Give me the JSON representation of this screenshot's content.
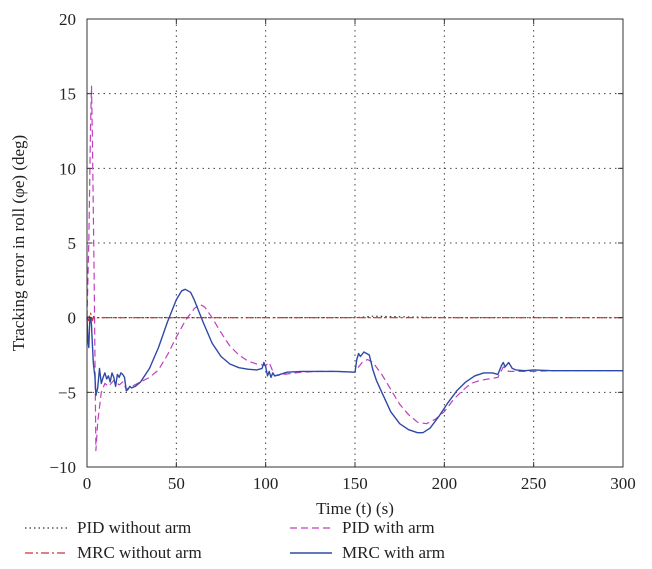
{
  "chart_data": {
    "type": "line",
    "xlabel": "Time (t) (s)",
    "ylabel": "Tracking error in roll (φe) (deg)",
    "xlim": [
      0,
      300
    ],
    "ylim": [
      -10,
      20
    ],
    "xticks": [
      0,
      50,
      100,
      150,
      200,
      250,
      300
    ],
    "yticks": [
      -10,
      -5,
      0,
      5,
      10,
      15,
      20
    ],
    "grid": true,
    "legend_position": "bottom",
    "series": [
      {
        "name": "PID without arm",
        "color": "#333333",
        "style": "dotted",
        "x": [
          0,
          1,
          2,
          3,
          5,
          50,
          100,
          150,
          160,
          200,
          250,
          300
        ],
        "y": [
          0,
          0.2,
          -0.3,
          0.1,
          0,
          0,
          0,
          0,
          0.1,
          0,
          0,
          0
        ]
      },
      {
        "name": "PID with arm",
        "color": "#c040c0",
        "style": "dashed",
        "x": [
          0,
          1,
          2,
          2.5,
          3,
          4,
          5,
          6,
          8,
          10,
          12,
          15,
          18,
          20,
          22,
          25,
          30,
          35,
          40,
          45,
          50,
          55,
          60,
          63,
          66,
          70,
          75,
          80,
          85,
          90,
          95,
          100,
          102,
          105,
          110,
          120,
          130,
          140,
          150,
          152,
          154,
          157,
          160,
          165,
          170,
          175,
          180,
          185,
          190,
          195,
          200,
          205,
          210,
          215,
          220,
          225,
          230,
          233,
          236,
          240,
          250,
          260,
          280,
          300
        ],
        "y": [
          0,
          5,
          13,
          15.5,
          12,
          3,
          -8.9,
          -7,
          -5,
          -4.4,
          -4.6,
          -4.2,
          -4.5,
          -4.3,
          -4.8,
          -4.6,
          -4.3,
          -4.0,
          -3.5,
          -2.5,
          -1.3,
          -0.2,
          0.6,
          0.9,
          0.7,
          0.0,
          -1.0,
          -1.9,
          -2.5,
          -2.9,
          -3.1,
          -3.2,
          -3.0,
          -3.9,
          -3.8,
          -3.65,
          -3.6,
          -3.6,
          -3.65,
          -3.3,
          -3.0,
          -2.8,
          -3.0,
          -3.8,
          -4.8,
          -5.8,
          -6.5,
          -7.0,
          -7.1,
          -6.8,
          -6.3,
          -5.5,
          -4.9,
          -4.4,
          -4.2,
          -4.1,
          -4.0,
          -3.3,
          -3.6,
          -3.6,
          -3.6,
          -3.55,
          -3.55,
          -3.55
        ]
      },
      {
        "name": "MRC without arm",
        "color": "#d03030",
        "style": "dashdot",
        "x": [
          0,
          1,
          2,
          3,
          4,
          5,
          10,
          50,
          100,
          150,
          200,
          250,
          300
        ],
        "y": [
          0,
          -0.2,
          0.3,
          -0.2,
          0.1,
          0,
          0,
          0,
          0,
          0,
          0,
          0,
          0
        ]
      },
      {
        "name": "MRC with arm",
        "color": "#2f4aa6",
        "style": "solid",
        "x": [
          0,
          0.5,
          1,
          1.5,
          2,
          2.5,
          3,
          3.5,
          4,
          4.5,
          5,
          6,
          7,
          8,
          9,
          10,
          11,
          12,
          13,
          14,
          15,
          16,
          17,
          18,
          19,
          20,
          21,
          22,
          23,
          24,
          25,
          27,
          30,
          35,
          40,
          45,
          50,
          53,
          55,
          58,
          60,
          65,
          70,
          75,
          80,
          85,
          90,
          95,
          98,
          99,
          100,
          101,
          102,
          103,
          104,
          105,
          108,
          112,
          120,
          130,
          140,
          150,
          151,
          152,
          153,
          155,
          158,
          160,
          162,
          165,
          170,
          175,
          180,
          185,
          188,
          192,
          197,
          202,
          207,
          212,
          217,
          222,
          227,
          230,
          232,
          233,
          234,
          236,
          238,
          240,
          245,
          250,
          260,
          280,
          300
        ],
        "y": [
          0,
          -1.5,
          -2.0,
          -0.3,
          0.0,
          -0.5,
          -1.8,
          -3.0,
          -3.5,
          -4.0,
          -5.2,
          -4.7,
          -3.4,
          -4.4,
          -4.0,
          -3.7,
          -4.1,
          -3.9,
          -4.3,
          -3.7,
          -4.0,
          -4.6,
          -3.8,
          -4.0,
          -3.7,
          -3.8,
          -4.0,
          -4.9,
          -4.8,
          -4.6,
          -4.7,
          -4.6,
          -4.3,
          -3.4,
          -2.0,
          -0.3,
          1.2,
          1.8,
          1.9,
          1.7,
          1.2,
          -0.3,
          -1.7,
          -2.6,
          -3.1,
          -3.35,
          -3.45,
          -3.5,
          -3.4,
          -3.0,
          -3.3,
          -3.9,
          -3.6,
          -4.0,
          -3.7,
          -3.9,
          -3.8,
          -3.65,
          -3.6,
          -3.6,
          -3.6,
          -3.65,
          -2.8,
          -2.4,
          -2.6,
          -2.3,
          -2.5,
          -3.5,
          -4.2,
          -5.0,
          -6.3,
          -7.1,
          -7.5,
          -7.7,
          -7.7,
          -7.4,
          -6.6,
          -5.7,
          -4.9,
          -4.3,
          -3.9,
          -3.7,
          -3.7,
          -3.8,
          -3.2,
          -3.0,
          -3.3,
          -3.0,
          -3.4,
          -3.5,
          -3.55,
          -3.5,
          -3.55,
          -3.55,
          -3.55
        ]
      }
    ]
  }
}
